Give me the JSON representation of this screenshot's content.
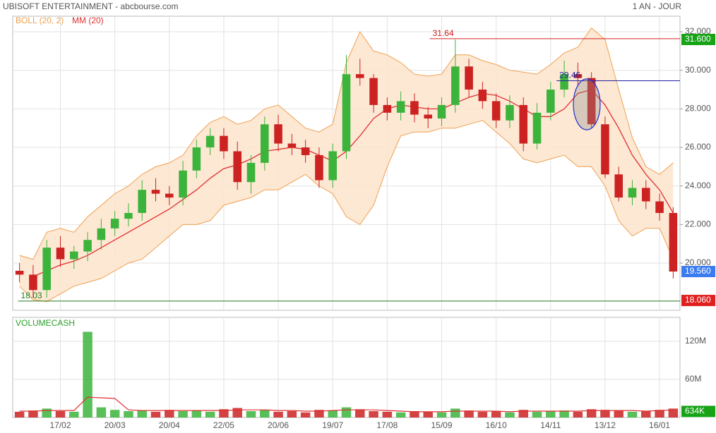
{
  "chart_data": {
    "type": "candlestick",
    "title": "UBISOFT ENTERTAINMENT - abcbourse.com",
    "subtitle": "1 AN - JOUR",
    "categories": [
      null,
      null,
      null,
      "17/02",
      null,
      null,
      null,
      "20/03",
      null,
      null,
      null,
      "20/04",
      null,
      null,
      null,
      "22/05",
      null,
      null,
      null,
      "20/06",
      null,
      null,
      null,
      "19/07",
      null,
      null,
      null,
      "17/08",
      null,
      null,
      null,
      "15/09",
      null,
      null,
      null,
      "16/10",
      null,
      null,
      null,
      "14/11",
      null,
      null,
      null,
      "13/12",
      null,
      null,
      null,
      "16/01",
      null
    ],
    "open": [
      19.6,
      19.4,
      18.6,
      20.8,
      20.2,
      20.6,
      21.2,
      21.8,
      22.3,
      22.6,
      23.8,
      23.6,
      23.4,
      24.8,
      26.0,
      26.6,
      25.8,
      24.2,
      25.2,
      27.2,
      26.2,
      26.0,
      25.6,
      24.3,
      25.8,
      29.8,
      29.6,
      28.2,
      27.8,
      28.4,
      27.7,
      27.5,
      28.2,
      30.2,
      29.0,
      28.4,
      27.4,
      28.2,
      26.2,
      27.8,
      29.0,
      29.8,
      29.6,
      27.2,
      24.6,
      23.4,
      23.9,
      23.2,
      22.6
    ],
    "high": [
      20.0,
      19.9,
      21.2,
      21.4,
      20.9,
      21.6,
      22.3,
      22.7,
      23.1,
      24.3,
      24.4,
      24.0,
      25.3,
      26.4,
      27.0,
      27.0,
      26.3,
      25.6,
      27.6,
      27.7,
      26.7,
      26.4,
      26.0,
      26.2,
      30.8,
      30.6,
      29.8,
      28.6,
      28.9,
      28.8,
      28.1,
      28.6,
      31.6,
      30.6,
      29.4,
      28.8,
      28.7,
      28.6,
      28.3,
      29.4,
      30.5,
      30.4,
      29.9,
      27.6,
      25.0,
      24.3,
      24.3,
      23.6,
      22.9
    ],
    "low": [
      19.0,
      18.2,
      18.2,
      19.8,
      19.7,
      20.1,
      20.7,
      21.4,
      21.9,
      22.2,
      23.2,
      23.0,
      23.0,
      24.4,
      25.6,
      25.4,
      23.8,
      23.6,
      24.8,
      25.8,
      25.6,
      25.2,
      23.9,
      23.9,
      25.4,
      29.2,
      27.8,
      27.4,
      27.4,
      27.3,
      27.0,
      27.1,
      27.8,
      28.6,
      28.0,
      27.0,
      27.0,
      25.8,
      25.9,
      27.4,
      28.6,
      29.2,
      27.0,
      24.4,
      23.2,
      23.0,
      22.8,
      22.2,
      19.2
    ],
    "close": [
      19.4,
      18.6,
      20.8,
      20.2,
      20.6,
      21.2,
      21.8,
      22.3,
      22.6,
      23.8,
      23.6,
      23.4,
      24.8,
      26.0,
      26.6,
      25.8,
      24.2,
      25.2,
      27.2,
      26.2,
      26.0,
      25.6,
      24.3,
      25.8,
      29.8,
      29.6,
      28.2,
      27.8,
      28.4,
      27.7,
      27.5,
      28.2,
      30.2,
      29.0,
      28.4,
      27.4,
      28.2,
      26.2,
      27.8,
      29.0,
      29.8,
      29.6,
      27.2,
      24.6,
      23.4,
      23.9,
      23.2,
      22.6,
      19.56
    ],
    "up_color": "#3cb43c",
    "down_color": "#cc2222",
    "bollinger": {
      "name": "BOLL (20, 2)",
      "color": "#f0a050",
      "fill": "#fde4cc",
      "upper": [
        20.4,
        20.2,
        21.6,
        21.8,
        21.6,
        22.4,
        23.0,
        23.6,
        24.0,
        24.6,
        25.0,
        25.2,
        25.6,
        26.6,
        27.3,
        27.6,
        27.2,
        27.4,
        28.0,
        28.2,
        27.6,
        27.0,
        26.8,
        27.2,
        30.4,
        32.0,
        31.0,
        30.8,
        30.4,
        29.8,
        29.7,
        29.8,
        30.8,
        30.8,
        30.5,
        30.3,
        30.0,
        29.9,
        29.8,
        30.3,
        30.9,
        31.2,
        32.2,
        31.6,
        29.0,
        26.5,
        25.0,
        24.6,
        25.2
      ],
      "lower": [
        18.8,
        18.1,
        18.0,
        18.4,
        18.8,
        19.0,
        19.2,
        19.6,
        20.0,
        20.2,
        20.8,
        21.4,
        22.0,
        22.0,
        22.2,
        23.0,
        23.2,
        23.4,
        23.8,
        23.8,
        24.2,
        24.6,
        24.0,
        23.6,
        22.4,
        22.0,
        23.0,
        25.0,
        26.6,
        26.8,
        26.8,
        27.0,
        27.0,
        27.2,
        27.4,
        26.8,
        26.2,
        25.4,
        25.2,
        25.4,
        25.6,
        25.0,
        25.0,
        24.0,
        22.2,
        21.4,
        21.8,
        21.8,
        20.2
      ]
    },
    "moving_average": {
      "name": "MM (20)",
      "color": "#e03030",
      "values": [
        null,
        19.3,
        19.6,
        19.9,
        20.1,
        20.4,
        20.8,
        21.2,
        21.6,
        22.0,
        22.4,
        22.8,
        23.3,
        23.8,
        24.4,
        24.9,
        25.1,
        25.4,
        25.8,
        25.9,
        26.0,
        25.9,
        25.6,
        25.3,
        25.8,
        26.6,
        27.5,
        28.0,
        28.2,
        28.1,
        28.0,
        28.0,
        28.3,
        28.6,
        28.8,
        28.7,
        28.4,
        28.0,
        27.6,
        27.6,
        28.0,
        28.8,
        29.0,
        28.2,
        27.0,
        25.6,
        24.6,
        23.8,
        22.6
      ]
    },
    "ylim": [
      17.55,
      32.55
    ],
    "yticks": [
      {
        "value": 20,
        "label": "20.000"
      },
      {
        "value": 22,
        "label": "22.000"
      },
      {
        "value": 24,
        "label": "24.000"
      },
      {
        "value": 26,
        "label": "26.000"
      },
      {
        "value": 28,
        "label": "28.000"
      },
      {
        "value": 30,
        "label": "30.000"
      },
      {
        "value": 32,
        "label": "32.000"
      }
    ],
    "grid": true,
    "levels": [
      {
        "value": 31.64,
        "label": "31.64",
        "color": "#d02020"
      },
      {
        "value": 29.46,
        "label": "29.46",
        "color": "#2020a0"
      },
      {
        "value": 18.03,
        "label": "18.03",
        "color": "#1f7a1f"
      }
    ],
    "price_badges": [
      {
        "value": 31.6,
        "label": "31.600",
        "color": "#16a316"
      },
      {
        "value": 19.56,
        "label": "19.560",
        "color": "#3a7bf0"
      },
      {
        "value": 18.06,
        "label": "18.060",
        "color": "#e02020"
      }
    ],
    "volume": {
      "title": "VOLUMECASH",
      "ma_color": "#e03030",
      "values": [
        9000000,
        11000000,
        14000000,
        10000000,
        9000000,
        135000000,
        16000000,
        12000000,
        10000000,
        11000000,
        9000000,
        12000000,
        10000000,
        11000000,
        9000000,
        13000000,
        15000000,
        10000000,
        12000000,
        9000000,
        10000000,
        8000000,
        12000000,
        11000000,
        16000000,
        13000000,
        10000000,
        9000000,
        8000000,
        10000000,
        9000000,
        8000000,
        14000000,
        11000000,
        9000000,
        10000000,
        8000000,
        12000000,
        9000000,
        10000000,
        11000000,
        9000000,
        13000000,
        12000000,
        11000000,
        9000000,
        10000000,
        12000000,
        14000000
      ],
      "ma": [
        10000000,
        10000000,
        11000000,
        11000000,
        11000000,
        32000000,
        31000000,
        30000000,
        12000000,
        11000000,
        11000000,
        11000000,
        11000000,
        11000000,
        11000000,
        11000000,
        12000000,
        12000000,
        12000000,
        11000000,
        11000000,
        10000000,
        10000000,
        11000000,
        12000000,
        12000000,
        12000000,
        11000000,
        10000000,
        9000000,
        9000000,
        9000000,
        10000000,
        10000000,
        10000000,
        10000000,
        9000000,
        10000000,
        10000000,
        10000000,
        10000000,
        10000000,
        11000000,
        11000000,
        11000000,
        11000000,
        10000000,
        11000000,
        12000000
      ],
      "ylim": [
        0,
        157800000
      ],
      "yticks": [
        {
          "value": 60000000,
          "label": "60M"
        },
        {
          "value": 120000000,
          "label": "120M"
        }
      ],
      "badge": {
        "value": 634000,
        "label": "634K",
        "color": "#16a316"
      }
    }
  }
}
